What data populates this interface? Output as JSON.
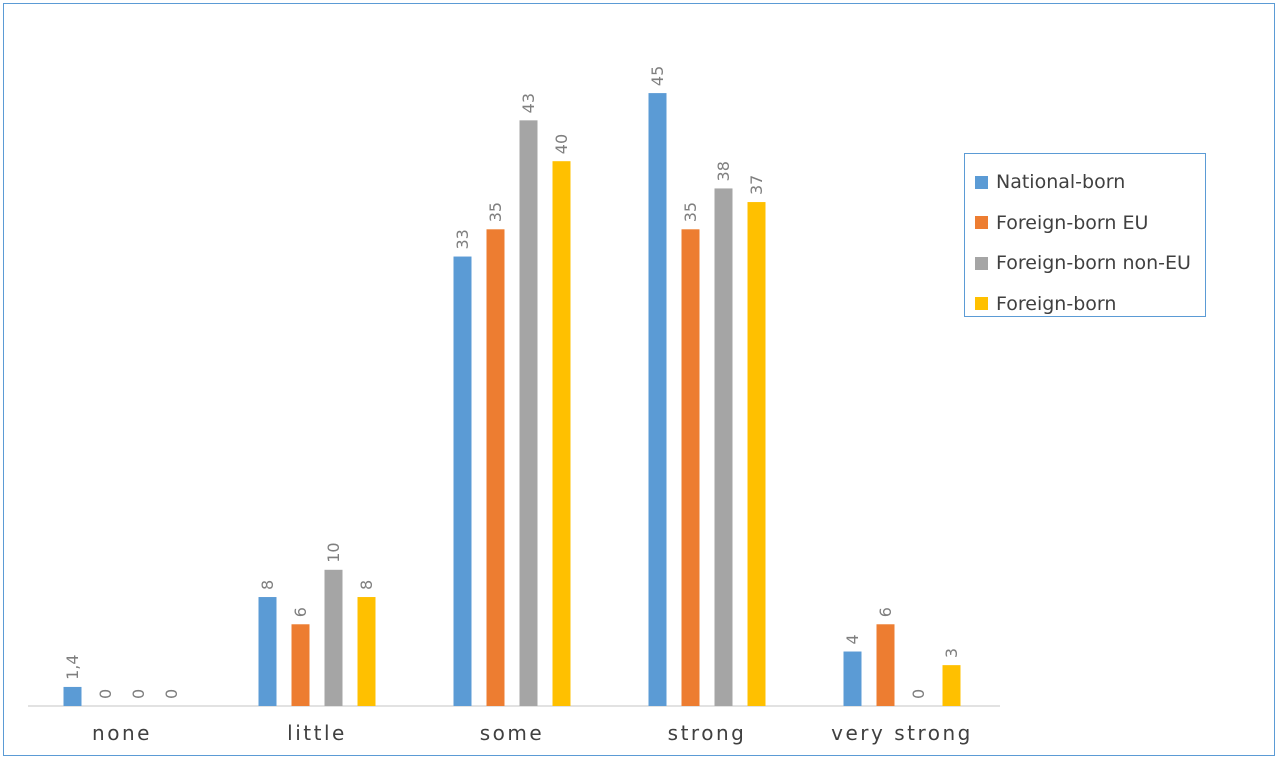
{
  "chart_data": {
    "type": "bar",
    "categories": [
      "none",
      "little",
      "some",
      "strong",
      "very strong"
    ],
    "series": [
      {
        "name": "National-born",
        "color": "#5b9bd5",
        "values": [
          1.4,
          8,
          33,
          45,
          4
        ],
        "labels": [
          "1,4",
          "8",
          "33",
          "45",
          "4"
        ]
      },
      {
        "name": "Foreign-born EU",
        "color": "#ed7d31",
        "values": [
          0,
          6,
          35,
          35,
          6
        ],
        "labels": [
          "0",
          "6",
          "35",
          "35",
          "6"
        ]
      },
      {
        "name": "Foreign-born non-EU",
        "color": "#a5a5a5",
        "values": [
          0,
          10,
          43,
          38,
          0
        ],
        "labels": [
          "0",
          "10",
          "43",
          "38",
          "0"
        ]
      },
      {
        "name": "Foreign-born",
        "color": "#ffc000",
        "values": [
          0,
          8,
          40,
          37,
          3
        ],
        "labels": [
          "0",
          "8",
          "40",
          "37",
          "3"
        ]
      }
    ],
    "title": "",
    "xlabel": "",
    "ylabel": "",
    "ylim": [
      0,
      50
    ],
    "grid": false,
    "legend_position": "right"
  }
}
